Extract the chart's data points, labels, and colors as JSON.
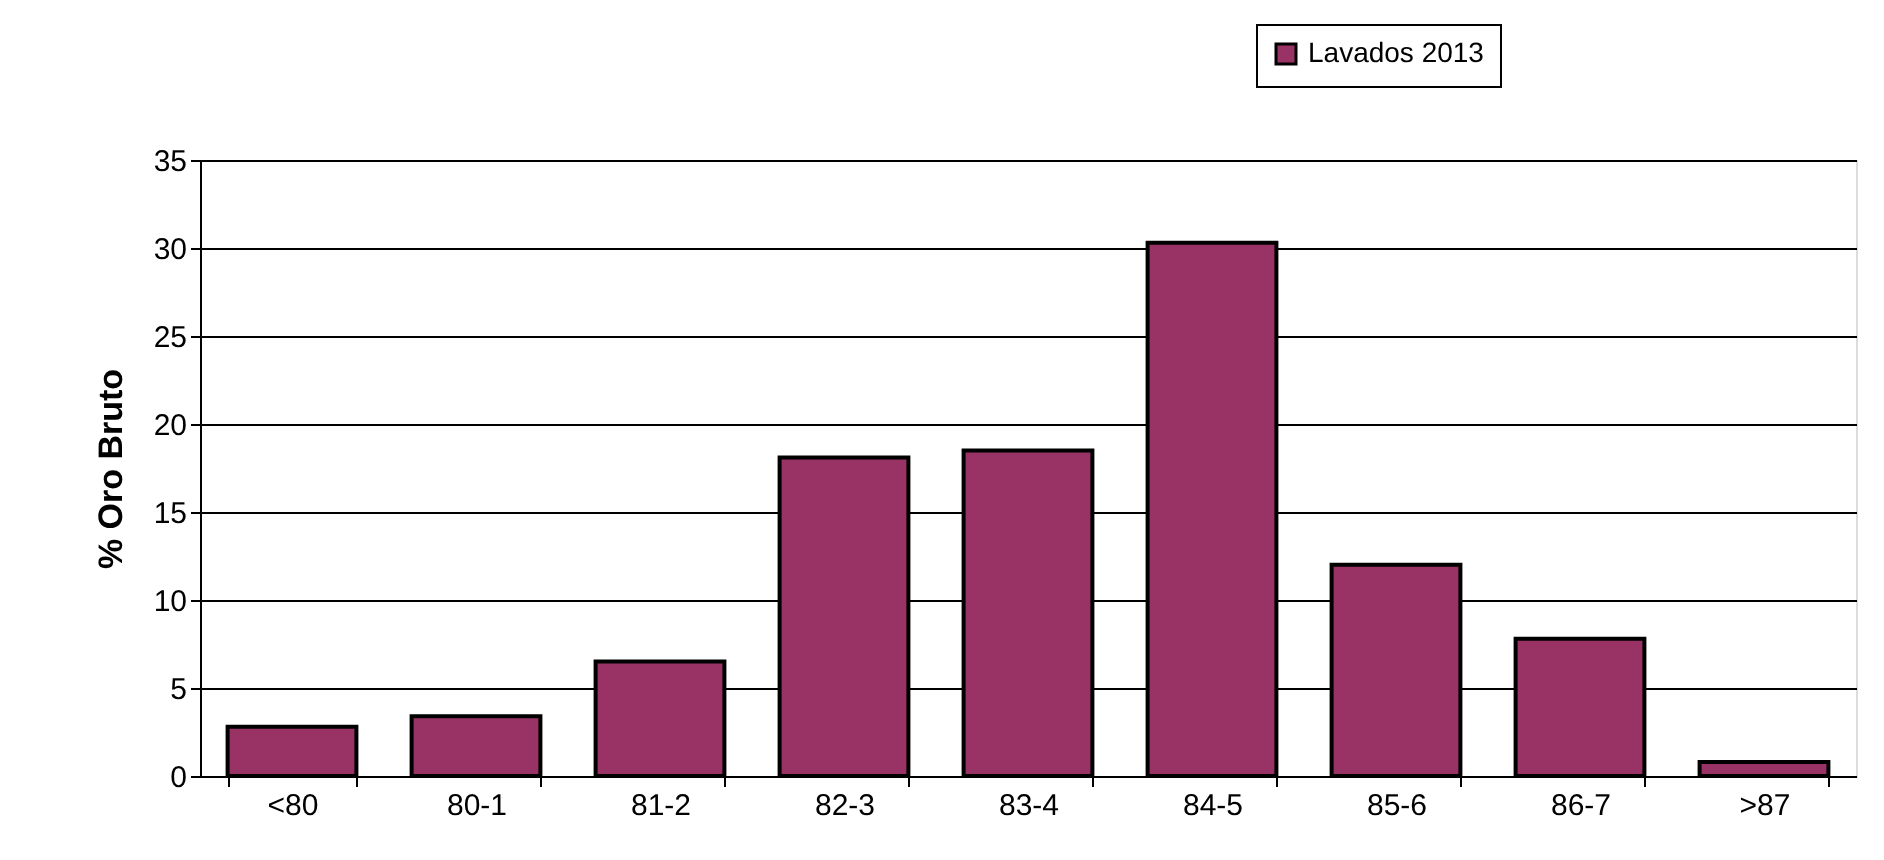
{
  "chart_data": {
    "type": "bar",
    "ylabel": "% Oro Bruto",
    "categories": [
      "<80",
      "80-1",
      "81-2",
      "82-3",
      "83-4",
      "84-5",
      "85-6",
      "86-7",
      ">87"
    ],
    "series": [
      {
        "name": "Lavados 2013",
        "color": "#993366",
        "values": [
          2.8,
          3.4,
          6.5,
          18.1,
          18.5,
          30.3,
          12.0,
          7.8,
          0.8
        ]
      }
    ],
    "ylim": [
      0,
      35
    ],
    "yticks": [
      0,
      5,
      10,
      15,
      20,
      25,
      30,
      35
    ],
    "grid": "y",
    "legend": "top right"
  }
}
